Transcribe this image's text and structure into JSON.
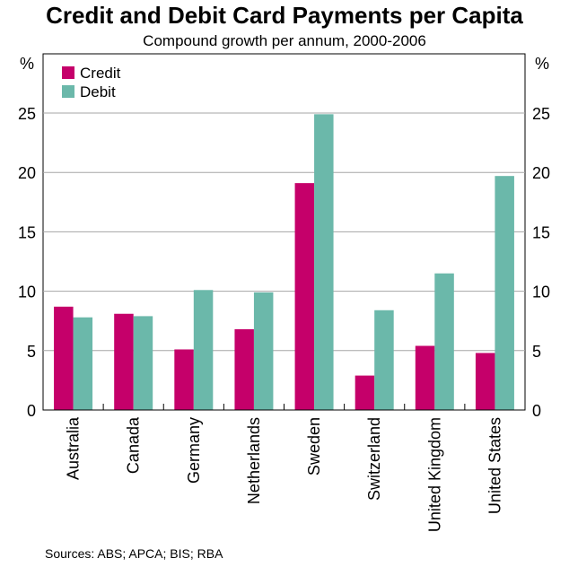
{
  "chart_data": {
    "type": "bar",
    "title": "Credit and Debit Card Payments per Capita",
    "subtitle": "Compound growth per annum, 2000-2006",
    "unit_left": "%",
    "unit_right": "%",
    "categories": [
      "Australia",
      "Canada",
      "Germany",
      "Netherlands",
      "Sweden",
      "Switzerland",
      "United Kingdom",
      "United States"
    ],
    "series": [
      {
        "name": "Credit",
        "color": "#c5006a",
        "values": [
          8.7,
          8.1,
          5.1,
          6.8,
          19.1,
          2.9,
          5.4,
          4.8
        ]
      },
      {
        "name": "Debit",
        "color": "#6bb8aa",
        "values": [
          7.8,
          7.9,
          10.1,
          9.9,
          24.9,
          8.4,
          11.5,
          19.7
        ]
      }
    ],
    "ylim": [
      0,
      25
    ],
    "yticks": [
      0,
      5,
      10,
      15,
      20,
      25
    ],
    "grid": true,
    "legend": "top-left",
    "source": "Sources: ABS; APCA; BIS; RBA"
  }
}
